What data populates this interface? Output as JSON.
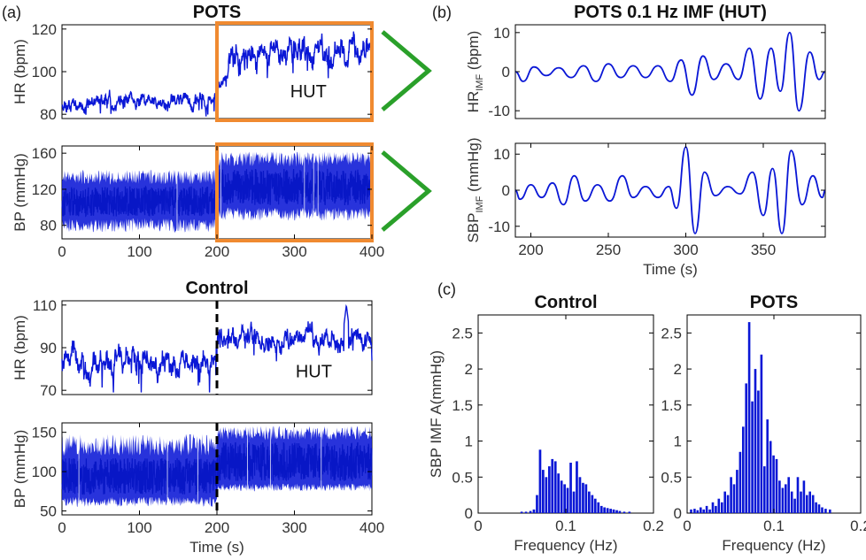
{
  "colors": {
    "line": "#0a17d6",
    "box": "#f08a30",
    "arrow": "#2aa02a",
    "axis": "#000000",
    "text": "#1a1a1a"
  },
  "panel_labels": {
    "a": "(a)",
    "b": "(b)",
    "c": "(c)"
  },
  "chart_data": [
    {
      "id": "pots_hr",
      "type": "line",
      "title": "POTS",
      "ylabel": "HR (bpm)",
      "xlim": [
        0,
        400
      ],
      "ylim": [
        78,
        122
      ],
      "yticks": [
        80,
        100,
        120
      ],
      "xticks": [],
      "annotation": "HUT",
      "highlight": {
        "x": [
          200,
          400
        ]
      },
      "series": [
        {
          "segments": [
            {
              "x": [
                0,
                200
              ],
              "mean": 86,
              "amp": 4
            },
            {
              "x": [
                200,
                215
              ],
              "mean": [
                90,
                101
              ],
              "amp": 3
            },
            {
              "x": [
                215,
                400
              ],
              "mean": 108,
              "amp": 7
            }
          ]
        }
      ]
    },
    {
      "id": "pots_bp",
      "type": "area",
      "title": "",
      "ylabel": "BP (mmHg)",
      "xlim": [
        0,
        400
      ],
      "ylim": [
        65,
        168
      ],
      "yticks": [
        80,
        120,
        160
      ],
      "xticks": [
        0,
        100,
        200,
        300,
        400
      ],
      "highlight": {
        "x": [
          200,
          400
        ]
      },
      "envelope": [
        {
          "x": [
            0,
            200
          ],
          "low": [
            72,
            88
          ],
          "high": [
            125,
            142
          ]
        },
        {
          "x": [
            200,
            400
          ],
          "low": [
            85,
            100
          ],
          "high": [
            145,
            162
          ]
        }
      ]
    },
    {
      "id": "control_hr",
      "type": "line",
      "title": "Control",
      "ylabel": "HR (bpm)",
      "xlim": [
        0,
        400
      ],
      "ylim": [
        68,
        112
      ],
      "yticks": [
        70,
        90,
        110
      ],
      "xticks": [],
      "annotation": "HUT",
      "marker": {
        "x": 200
      },
      "series": [
        {
          "segments": [
            {
              "x": [
                0,
                200
              ],
              "mean": 84,
              "amp": 7
            },
            {
              "x": [
                200,
                400
              ],
              "mean": 94,
              "amp": 6
            }
          ],
          "peak": {
            "x": 367,
            "y": 110
          }
        }
      ]
    },
    {
      "id": "control_bp",
      "type": "area",
      "title": "",
      "ylabel": "BP (mmHg)",
      "xlim": [
        0,
        400
      ],
      "ylim": [
        45,
        162
      ],
      "yticks": [
        50,
        100,
        150
      ],
      "xticks": [
        0,
        100,
        200,
        300,
        400
      ],
      "xlabel": "Time (s)",
      "marker": {
        "x": 200
      },
      "envelope": [
        {
          "x": [
            0,
            200
          ],
          "low": [
            55,
            68
          ],
          "high": [
            120,
            148
          ]
        },
        {
          "x": [
            200,
            400
          ],
          "low": [
            75,
            85
          ],
          "high": [
            140,
            158
          ]
        }
      ]
    },
    {
      "id": "hr_imf",
      "type": "line",
      "title": "POTS 0.1 Hz IMF (HUT)",
      "ylabel": "HR",
      "ylabel_sub": "IMF",
      "ylabel_unit": " (bpm)",
      "xlim": [
        190,
        390
      ],
      "ylim": [
        -12,
        12
      ],
      "yticks": [
        -10,
        0,
        10
      ],
      "xticks": [],
      "peaks": [
        {
          "x": 195,
          "y": -2.5
        },
        {
          "x": 202,
          "y": 1.2
        },
        {
          "x": 210,
          "y": -1
        },
        {
          "x": 218,
          "y": 1
        },
        {
          "x": 226,
          "y": -1.5
        },
        {
          "x": 234,
          "y": 1.5
        },
        {
          "x": 242,
          "y": -2.5
        },
        {
          "x": 250,
          "y": 2
        },
        {
          "x": 258,
          "y": -1.5
        },
        {
          "x": 266,
          "y": 1.5
        },
        {
          "x": 274,
          "y": -1.5
        },
        {
          "x": 282,
          "y": 1.5
        },
        {
          "x": 290,
          "y": -2.5
        },
        {
          "x": 297,
          "y": 3
        },
        {
          "x": 304,
          "y": -6
        },
        {
          "x": 311,
          "y": 4
        },
        {
          "x": 318,
          "y": -2
        },
        {
          "x": 326,
          "y": 2
        },
        {
          "x": 334,
          "y": -2
        },
        {
          "x": 341,
          "y": 6
        },
        {
          "x": 348,
          "y": -7
        },
        {
          "x": 355,
          "y": 6
        },
        {
          "x": 361,
          "y": -5
        },
        {
          "x": 367,
          "y": 10
        },
        {
          "x": 373,
          "y": -10
        },
        {
          "x": 380,
          "y": 5
        },
        {
          "x": 386,
          "y": -2
        }
      ]
    },
    {
      "id": "sbp_imf",
      "type": "line",
      "title": "",
      "ylabel": "SBP",
      "ylabel_sub": "IMF",
      "ylabel_unit": " (mmHg)",
      "xlim": [
        190,
        390
      ],
      "ylim": [
        -13,
        13
      ],
      "yticks": [
        -10,
        0,
        10
      ],
      "xticks": [
        200,
        250,
        300,
        350
      ],
      "xlabel": "Time (s)",
      "peaks": [
        {
          "x": 193,
          "y": -2.5
        },
        {
          "x": 200,
          "y": 1.5
        },
        {
          "x": 207,
          "y": -2
        },
        {
          "x": 214,
          "y": 2
        },
        {
          "x": 221,
          "y": -4
        },
        {
          "x": 228,
          "y": 4
        },
        {
          "x": 235,
          "y": -3
        },
        {
          "x": 243,
          "y": 1.5
        },
        {
          "x": 251,
          "y": -3
        },
        {
          "x": 259,
          "y": 4
        },
        {
          "x": 266,
          "y": -2
        },
        {
          "x": 274,
          "y": 1
        },
        {
          "x": 282,
          "y": -2
        },
        {
          "x": 289,
          "y": 1
        },
        {
          "x": 294,
          "y": -5
        },
        {
          "x": 300,
          "y": 12
        },
        {
          "x": 306,
          "y": -12
        },
        {
          "x": 312,
          "y": 5
        },
        {
          "x": 319,
          "y": -1.5
        },
        {
          "x": 327,
          "y": 1
        },
        {
          "x": 335,
          "y": -1
        },
        {
          "x": 343,
          "y": 5
        },
        {
          "x": 350,
          "y": -7
        },
        {
          "x": 356,
          "y": 6
        },
        {
          "x": 362,
          "y": -12
        },
        {
          "x": 368,
          "y": 11
        },
        {
          "x": 375,
          "y": -4
        },
        {
          "x": 382,
          "y": 4
        },
        {
          "x": 388,
          "y": -2
        }
      ]
    },
    {
      "id": "control_hist",
      "type": "bar",
      "title": "Control",
      "ylabel": "SBP IMF A(mmHg)",
      "xlabel": "Frequency (Hz)",
      "xlim": [
        0,
        0.2
      ],
      "ylim": [
        0,
        2.75
      ],
      "yticks": [
        0,
        0.5,
        1,
        1.5,
        2,
        2.5
      ],
      "xticks": [
        0,
        0.1,
        0.2
      ],
      "bin_width": 0.0035,
      "x": [
        0.05,
        0.055,
        0.06,
        0.064,
        0.0675,
        0.071,
        0.0745,
        0.078,
        0.0815,
        0.085,
        0.0885,
        0.092,
        0.0955,
        0.099,
        0.1025,
        0.106,
        0.1095,
        0.113,
        0.1165,
        0.12,
        0.1235,
        0.127,
        0.1305,
        0.134,
        0.1375,
        0.141,
        0.1445,
        0.148,
        0.1515,
        0.155,
        0.1585,
        0.162,
        0.167,
        0.173
      ],
      "values": [
        0.02,
        0.02,
        0.03,
        0.05,
        0.25,
        0.88,
        0.6,
        0.5,
        0.65,
        0.75,
        0.72,
        0.55,
        0.45,
        0.4,
        0.35,
        0.7,
        0.3,
        0.72,
        0.5,
        0.42,
        0.4,
        0.3,
        0.25,
        0.2,
        0.15,
        0.1,
        0.08,
        0.07,
        0.06,
        0.05,
        0.04,
        0.03,
        0.02,
        0.02
      ]
    },
    {
      "id": "pots_hist",
      "type": "bar",
      "title": "POTS",
      "ylabel": "",
      "xlabel": "Frequency (Hz)",
      "xlim": [
        0,
        0.2
      ],
      "ylim": [
        0,
        2.75
      ],
      "yticks": [
        0,
        0.5,
        1,
        1.5,
        2,
        2.5
      ],
      "xticks": [
        0,
        0.1,
        0.2
      ],
      "bin_width": 0.0035,
      "x": [
        0.005,
        0.009,
        0.0125,
        0.016,
        0.0195,
        0.023,
        0.0265,
        0.03,
        0.0335,
        0.037,
        0.0405,
        0.044,
        0.0475,
        0.051,
        0.0545,
        0.058,
        0.0615,
        0.065,
        0.0685,
        0.072,
        0.0755,
        0.079,
        0.0825,
        0.086,
        0.0895,
        0.093,
        0.0965,
        0.1,
        0.1035,
        0.107,
        0.1105,
        0.114,
        0.1175,
        0.121,
        0.1245,
        0.128,
        0.1315,
        0.135,
        0.1385,
        0.142,
        0.1455,
        0.149,
        0.1525,
        0.156,
        0.16,
        0.165
      ],
      "values": [
        0.05,
        0.06,
        0.04,
        0.08,
        0.05,
        0.1,
        0.05,
        0.15,
        0.1,
        0.2,
        0.15,
        0.3,
        0.25,
        0.5,
        0.4,
        0.6,
        0.85,
        1.2,
        1.8,
        2.65,
        1.55,
        2.0,
        1.7,
        2.2,
        0.65,
        1.3,
        1.0,
        0.8,
        0.75,
        0.45,
        0.35,
        0.4,
        0.5,
        0.3,
        0.2,
        0.5,
        0.3,
        0.45,
        0.25,
        0.3,
        0.25,
        0.15,
        0.12,
        0.08,
        0.06,
        0.05
      ]
    }
  ]
}
